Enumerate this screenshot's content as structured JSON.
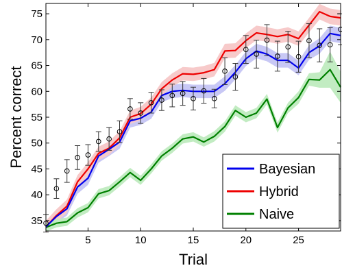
{
  "chart_data": {
    "type": "line",
    "xlabel": "Trial",
    "ylabel": "Percent correct",
    "xlim": [
      1,
      29
    ],
    "ylim": [
      33,
      77
    ],
    "xticks": [
      5,
      10,
      15,
      20,
      25
    ],
    "yticks": [
      35,
      40,
      45,
      50,
      55,
      60,
      65,
      70,
      75
    ],
    "legend_position": "bottom-right",
    "x": [
      1,
      2,
      3,
      4,
      5,
      6,
      7,
      8,
      9,
      10,
      11,
      12,
      13,
      14,
      15,
      16,
      17,
      18,
      19,
      20,
      21,
      22,
      23,
      24,
      25,
      26,
      27,
      28,
      29
    ],
    "series": [
      {
        "name": "Bayesian",
        "color": "#0000ee",
        "band_color": "#c8c8f5",
        "values": [
          33.8,
          35.8,
          37.3,
          41.5,
          43.2,
          47.5,
          48.8,
          50.2,
          54.3,
          54.8,
          56.0,
          59.2,
          60.0,
          60.2,
          60.0,
          60.0,
          60.0,
          61.5,
          63.7,
          66.3,
          67.8,
          67.2,
          66.0,
          66.0,
          64.5,
          67.5,
          68.8,
          71.2,
          70.8
        ],
        "band": [
          1.2,
          1.2,
          1.3,
          1.3,
          1.3,
          1.3,
          1.3,
          1.3,
          1.3,
          1.3,
          1.3,
          1.3,
          1.3,
          1.3,
          1.3,
          1.3,
          1.3,
          1.4,
          1.4,
          1.4,
          1.4,
          1.4,
          1.4,
          1.4,
          1.4,
          1.4,
          1.5,
          1.5,
          1.5
        ]
      },
      {
        "name": "Hybrid",
        "color": "#ee0000",
        "band_color": "#f7caca",
        "values": [
          33.8,
          36.0,
          37.8,
          42.5,
          45.0,
          48.0,
          49.0,
          51.0,
          55.0,
          55.7,
          57.5,
          60.5,
          62.2,
          63.4,
          63.3,
          63.6,
          64.2,
          67.8,
          67.9,
          69.8,
          71.3,
          71.0,
          70.6,
          71.0,
          70.2,
          72.8,
          75.4,
          74.5,
          74.2
        ],
        "band": [
          1.2,
          1.2,
          1.3,
          1.3,
          1.3,
          1.3,
          1.3,
          1.3,
          1.3,
          1.3,
          1.3,
          1.3,
          1.3,
          1.3,
          1.3,
          1.3,
          1.3,
          1.4,
          1.4,
          1.4,
          1.4,
          1.4,
          1.4,
          1.4,
          1.4,
          1.4,
          1.5,
          1.5,
          1.5
        ]
      },
      {
        "name": "Naive",
        "color": "#008000",
        "band_color": "#c2ecc2",
        "values": [
          33.7,
          34.5,
          34.8,
          36.5,
          37.5,
          40.2,
          40.8,
          42.5,
          44.3,
          42.8,
          45.0,
          47.5,
          49.0,
          50.8,
          51.2,
          50.2,
          51.3,
          53.2,
          56.3,
          55.0,
          55.8,
          58.5,
          53.0,
          56.8,
          58.8,
          62.3,
          62.2,
          64.2,
          60.8
        ],
        "band": [
          0.8,
          0.8,
          0.8,
          0.9,
          0.9,
          0.9,
          0.9,
          0.9,
          0.9,
          0.9,
          0.9,
          0.9,
          0.9,
          0.9,
          0.9,
          0.9,
          1.0,
          1.0,
          1.0,
          1.0,
          1.0,
          1.0,
          1.0,
          1.0,
          1.2,
          1.2,
          1.5,
          3.5,
          3.0
        ]
      },
      {
        "name": "",
        "type": "errorbar",
        "color": "#000000",
        "values": [
          34.5,
          41.2,
          44.6,
          47.2,
          47.7,
          50.3,
          50.8,
          52.2,
          56.6,
          55.8,
          57.8,
          58.3,
          59.2,
          59.6,
          58.6,
          60.1,
          58.6,
          63.9,
          62.8,
          68.1,
          67.2,
          69.9,
          66.8,
          68.6,
          66.7,
          69.8,
          68.9,
          69.0,
          72.0
        ],
        "error": [
          1.7,
          1.9,
          2.2,
          2.3,
          2.0,
          1.9,
          2.2,
          2.1,
          2.0,
          2.0,
          2.0,
          2.0,
          2.2,
          2.3,
          2.2,
          2.4,
          1.8,
          2.6,
          2.6,
          2.7,
          2.7,
          3.0,
          2.9,
          3.0,
          3.0,
          3.3,
          3.2,
          3.3,
          3.0
        ]
      }
    ]
  }
}
